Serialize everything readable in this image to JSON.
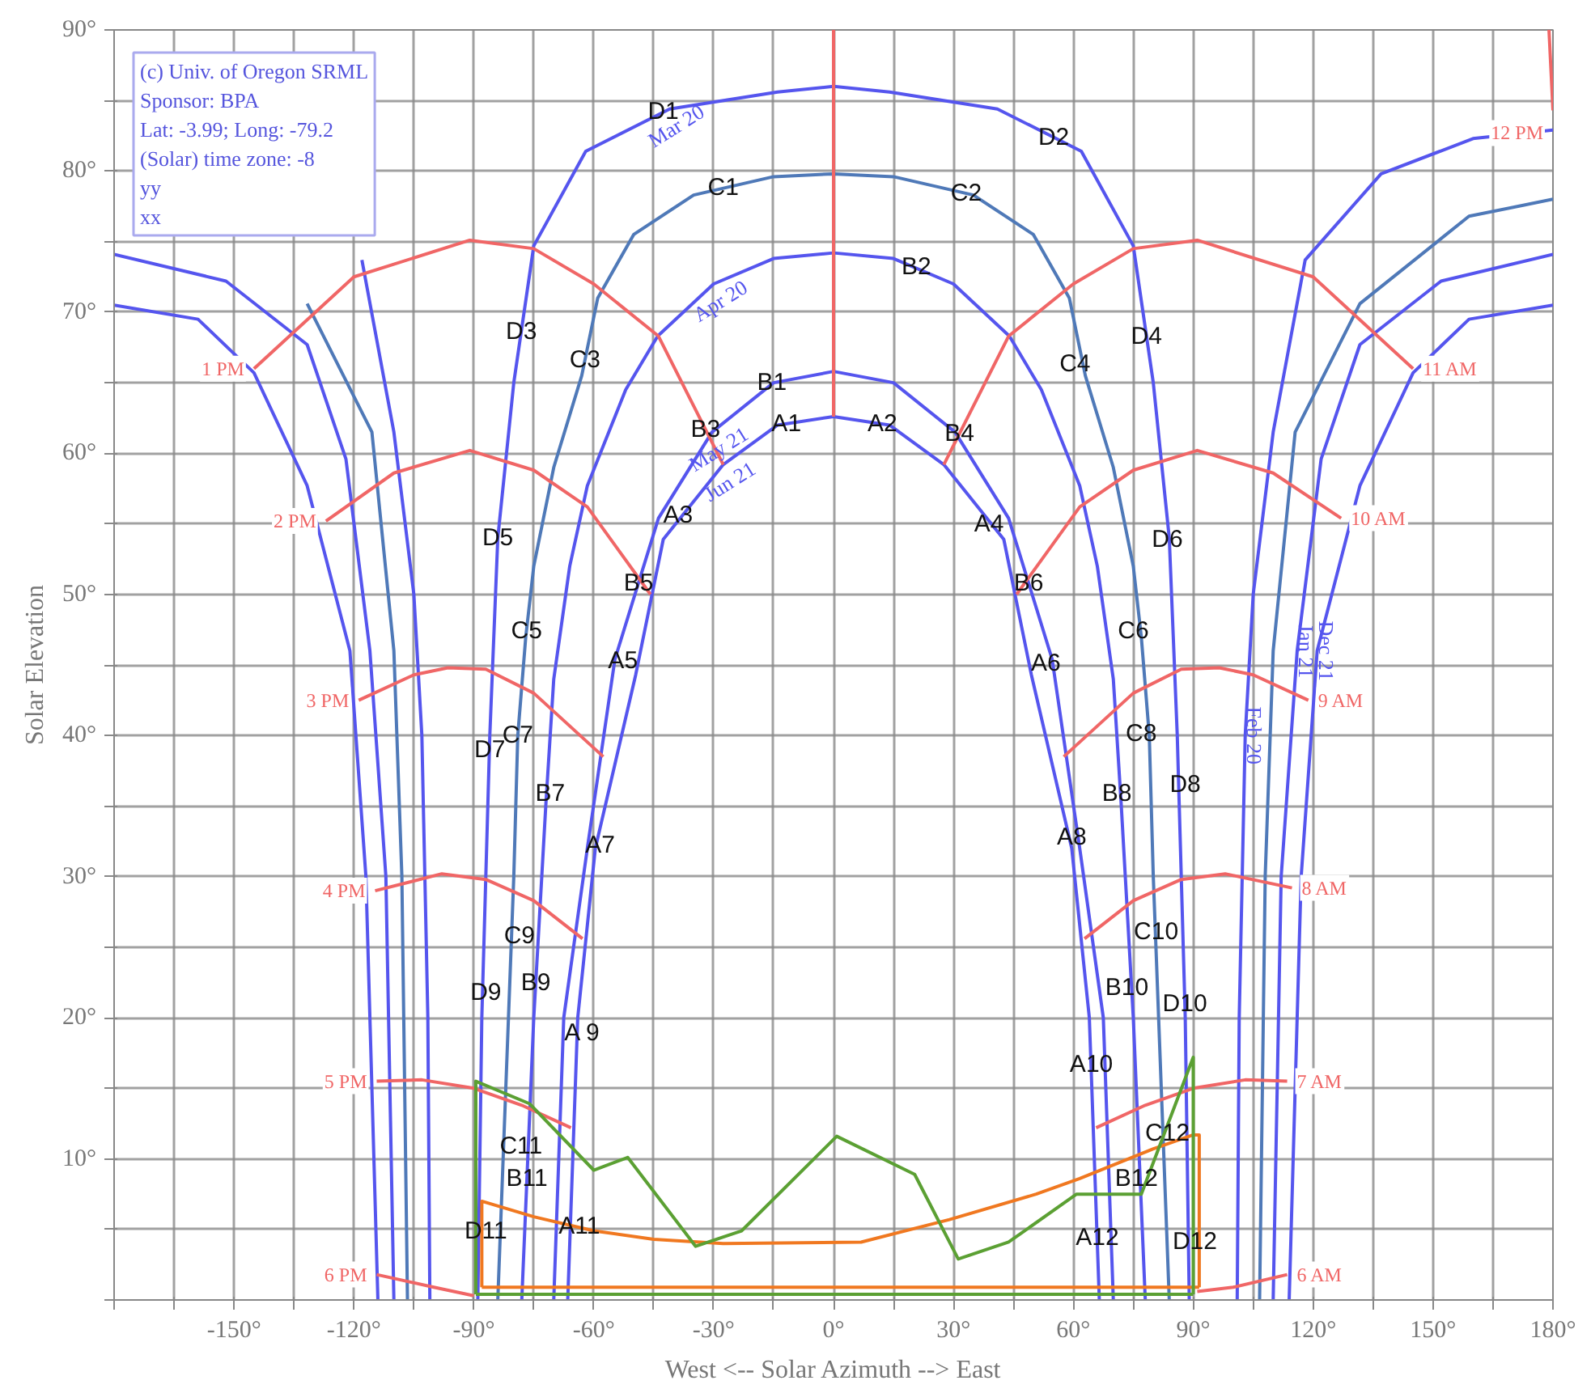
{
  "chart_data": {
    "type": "line",
    "xlabel": "West <-- Solar Azimuth --> East",
    "ylabel": "Solar Elevation",
    "xlim": [
      -180,
      180
    ],
    "ylim": [
      0,
      90
    ],
    "xticks": [
      {
        "value": -180,
        "label": null
      },
      {
        "value": -165,
        "label": null
      },
      {
        "value": -150,
        "label": "-150°"
      },
      {
        "value": -135,
        "label": null
      },
      {
        "value": -120,
        "label": "-120°"
      },
      {
        "value": -105,
        "label": null
      },
      {
        "value": -90,
        "label": "-90°"
      },
      {
        "value": -75,
        "label": null
      },
      {
        "value": -60,
        "label": "-60°"
      },
      {
        "value": -45,
        "label": null
      },
      {
        "value": -30,
        "label": "-30°"
      },
      {
        "value": -15,
        "label": null
      },
      {
        "value": 0,
        "label": "0°"
      },
      {
        "value": 15,
        "label": null
      },
      {
        "value": 30,
        "label": "30°"
      },
      {
        "value": 45,
        "label": null
      },
      {
        "value": 60,
        "label": "60°"
      },
      {
        "value": 75,
        "label": null
      },
      {
        "value": 90,
        "label": "90°"
      },
      {
        "value": 105,
        "label": null
      },
      {
        "value": 120,
        "label": "120°"
      },
      {
        "value": 135,
        "label": null
      },
      {
        "value": 150,
        "label": "150°"
      },
      {
        "value": 165,
        "label": null
      },
      {
        "value": 180,
        "label": "180°"
      }
    ],
    "yticks": [
      {
        "value": 0,
        "label": null
      },
      {
        "value": 5,
        "label": null
      },
      {
        "value": 10,
        "label": "10°"
      },
      {
        "value": 15,
        "label": null
      },
      {
        "value": 20,
        "label": "20°"
      },
      {
        "value": 25,
        "label": null
      },
      {
        "value": 30,
        "label": "30°"
      },
      {
        "value": 35,
        "label": null
      },
      {
        "value": 40,
        "label": "40°"
      },
      {
        "value": 45,
        "label": null
      },
      {
        "value": 50,
        "label": "50°"
      },
      {
        "value": 55,
        "label": null
      },
      {
        "value": 60,
        "label": "60°"
      },
      {
        "value": 65,
        "label": null
      },
      {
        "value": 70,
        "label": "70°"
      },
      {
        "value": 75,
        "label": null
      },
      {
        "value": 80,
        "label": "80°"
      },
      {
        "value": 85,
        "label": null
      },
      {
        "value": 90,
        "label": "90°"
      }
    ],
    "grid": true,
    "line_style": "solid",
    "marker": "none",
    "series": [
      {
        "name": "Mar 20",
        "color": "#5555ee",
        "x": [
          -89,
          -88,
          -86,
          -84,
          -80,
          -75,
          -62,
          -41,
          -14,
          0,
          14,
          41,
          62,
          75,
          80,
          84,
          86,
          88,
          89
        ],
        "values": [
          0,
          20,
          40,
          54,
          65,
          74.7,
          81.4,
          84.4,
          85.6,
          86,
          85.6,
          84.4,
          81.4,
          74.7,
          65,
          54,
          40,
          20,
          0
        ]
      },
      {
        "color": "#4f79b8",
        "x": [
          -84,
          -82,
          -80,
          -79,
          -77,
          -75,
          -70,
          -63,
          -59,
          -50,
          -35,
          -15,
          0,
          15,
          35,
          50,
          59,
          63,
          70,
          75,
          77,
          79,
          80,
          82,
          84
        ],
        "values": [
          0,
          15,
          30,
          40,
          47,
          52,
          59,
          65.5,
          71,
          75.5,
          78.3,
          79.6,
          79.8,
          79.6,
          78.3,
          75.5,
          71,
          65.5,
          59,
          52,
          47,
          40,
          30,
          15,
          0
        ]
      },
      {
        "name": "Apr 20",
        "color": "#5555ee",
        "x": [
          -78,
          -75,
          -72,
          -70,
          -66,
          -61.6,
          -52,
          -44,
          -30,
          -15,
          0,
          15,
          30,
          44,
          52,
          61.6,
          66,
          70,
          72,
          75,
          78
        ],
        "values": [
          0,
          20,
          35,
          44,
          52,
          57.7,
          64.5,
          68.3,
          72,
          73.8,
          74.2,
          73.8,
          72,
          68.3,
          64.5,
          57.7,
          52,
          44,
          35,
          20,
          0
        ]
      },
      {
        "name": "May 21",
        "color": "#5555ee",
        "x": [
          -70,
          -67.5,
          -61.6,
          -54.7,
          -43.8,
          -30.4,
          -15,
          0,
          15,
          30.4,
          43.8,
          54.7,
          61.6,
          67.5,
          70
        ],
        "values": [
          0,
          20,
          32,
          45.4,
          55.4,
          61.5,
          65,
          65.8,
          65,
          61.5,
          55.4,
          45.4,
          32,
          20,
          0
        ]
      },
      {
        "name": "Jun 21",
        "color": "#5555ee",
        "x": [
          -66.5,
          -64,
          -59.6,
          -49.5,
          -42.6,
          -27.6,
          -14,
          0,
          14,
          27.6,
          42.6,
          49.5,
          59.6,
          64,
          66.5
        ],
        "values": [
          0,
          20,
          32,
          44.3,
          53.9,
          59.2,
          62,
          62.6,
          62,
          59.2,
          53.9,
          44.3,
          32,
          20,
          0
        ]
      },
      {
        "name": "Feb 20",
        "color": "#5555ee",
        "x": [
          -101,
          -101.5,
          -103,
          -105,
          -110,
          -118,
          null,
          180,
          160,
          137,
          118,
          110,
          105,
          103,
          101.5,
          101
        ],
        "values": [
          0,
          20,
          40,
          50,
          61.5,
          73.7,
          null,
          82.9,
          82.3,
          79.8,
          73.7,
          61.5,
          50,
          40,
          20,
          0
        ]
      },
      {
        "color": "#4f79b8",
        "x": [
          -106.6,
          -108,
          -110,
          -115.5,
          -131.7,
          null,
          180,
          159,
          131.7,
          115.5,
          110,
          108,
          106.6
        ],
        "values": [
          0,
          30,
          46,
          61.5,
          70.6,
          null,
          78,
          76.8,
          70.6,
          61.5,
          46,
          30,
          0
        ]
      },
      {
        "name": "Jan 21",
        "color": "#5555ee",
        "x": [
          -110,
          -112,
          -116,
          -122,
          -131.7,
          -152,
          -180,
          null,
          180,
          152,
          131.7,
          122,
          116,
          112,
          110
        ],
        "values": [
          0,
          30,
          46,
          59.6,
          67.7,
          72.2,
          74.1,
          null,
          74.1,
          72.2,
          67.7,
          59.6,
          46,
          30,
          0
        ]
      },
      {
        "name": "Dec 21",
        "color": "#5555ee",
        "x": [
          -114,
          -117,
          -121,
          -131.7,
          -145,
          -159,
          -180,
          null,
          180,
          159,
          145,
          131.7,
          121,
          117,
          114
        ],
        "values": [
          0,
          30,
          46,
          57.7,
          65.7,
          69.5,
          70.5,
          null,
          70.5,
          69.5,
          65.7,
          57.7,
          46,
          30,
          0
        ]
      },
      {
        "name": "1 PM",
        "color": "#f06666",
        "x": [
          -145,
          -120,
          -91,
          -75,
          -60,
          -43.8,
          -27.6
        ],
        "values": [
          66,
          72.5,
          75.1,
          74.5,
          72,
          68.3,
          59.2
        ]
      },
      {
        "name": "2 PM",
        "color": "#f06666",
        "x": [
          -127,
          -110,
          -91,
          -75,
          -61.6,
          -45.8
        ],
        "values": [
          55.2,
          58.6,
          60.2,
          58.8,
          56.2,
          50
        ]
      },
      {
        "name": "3 PM",
        "color": "#f06666",
        "x": [
          -118.8,
          -105,
          -96.5,
          -87,
          -75,
          -57.6
        ],
        "values": [
          42.5,
          44.3,
          44.8,
          44.7,
          43,
          38.5
        ]
      },
      {
        "name": "4 PM",
        "color": "#f06666",
        "x": [
          -114.7,
          -98,
          -87,
          -75,
          -62.8
        ],
        "values": [
          29,
          30.2,
          29.8,
          28.3,
          25.6
        ]
      },
      {
        "name": "5 PM",
        "color": "#f06666",
        "x": [
          -114.3,
          -103,
          -90,
          -78,
          -65.7
        ],
        "values": [
          15.5,
          15.6,
          15,
          13.8,
          12.2
        ]
      },
      {
        "name": "6 PM",
        "color": "#f06666",
        "x": [
          -114.3,
          -100,
          -90
        ],
        "values": [
          1.8,
          0.9,
          0.3
        ]
      },
      {
        "name": "12 PM",
        "color": "#f06666",
        "x": [
          180,
          179,
          null,
          0,
          0
        ],
        "values": [
          84.3,
          90,
          null,
          90,
          62.6
        ]
      },
      {
        "name": "11 AM",
        "color": "#f06666",
        "x": [
          145,
          120,
          91,
          75,
          60,
          43.8,
          27.6
        ],
        "values": [
          66,
          72.5,
          75.1,
          74.5,
          72,
          68.3,
          59.2
        ]
      },
      {
        "name": "10 AM",
        "color": "#f06666",
        "x": [
          127,
          110,
          91,
          75,
          61.6,
          45.8
        ],
        "values": [
          55.4,
          58.6,
          60.2,
          58.8,
          56.2,
          50
        ]
      },
      {
        "name": "9 AM",
        "color": "#f06666",
        "x": [
          118.8,
          105,
          96.5,
          87,
          75,
          57.6
        ],
        "values": [
          42.5,
          44.3,
          44.8,
          44.7,
          43,
          38.5
        ]
      },
      {
        "name": "8 AM",
        "color": "#f06666",
        "x": [
          114.7,
          98,
          87,
          75,
          62.8
        ],
        "values": [
          29.2,
          30.2,
          29.8,
          28.3,
          25.6
        ]
      },
      {
        "name": "7 AM",
        "color": "#f06666",
        "x": [
          113.5,
          103,
          90,
          78,
          65.7
        ],
        "values": [
          15.5,
          15.6,
          15,
          13.8,
          12.2
        ]
      },
      {
        "name": "6 AM",
        "color": "#f06666",
        "x": [
          113.5,
          100,
          91
        ],
        "values": [
          1.8,
          0.9,
          0.6
        ]
      },
      {
        "color": "#f07820",
        "x": [
          -88,
          -88,
          -75,
          -60,
          -45,
          -27.6,
          6.9,
          29,
          50.7,
          61.6,
          79.9,
          90,
          91.5,
          91.5
        ],
        "values": [
          0.9,
          7,
          5.9,
          4.9,
          4.3,
          4,
          4.1,
          5.7,
          7.5,
          8.6,
          10.7,
          11.7,
          11.7,
          0.9
        ]
      },
      {
        "color": "#f07820",
        "x": [
          -88,
          91.5
        ],
        "values": [
          0.9,
          0.9
        ]
      },
      {
        "color": "#5ba033",
        "x": [
          -89.5,
          -89.5,
          -76,
          -60,
          -51.5,
          -34.5,
          -23,
          0.8,
          20.3,
          31.2,
          43.8,
          60.8,
          77,
          90,
          90
        ],
        "values": [
          0.4,
          15.5,
          13.9,
          9.2,
          10.1,
          3.8,
          4.9,
          11.6,
          8.9,
          2.9,
          4.1,
          7.5,
          7.5,
          17.2,
          0.4
        ]
      },
      {
        "color": "#5ba033",
        "x": [
          -89.5,
          90
        ],
        "values": [
          0.4,
          0.4
        ]
      }
    ],
    "annotations": [
      "(c) Univ. of Oregon SRML",
      "Sponsor: BPA",
      "Lat: -3.99; Long: -79.2",
      "(Solar) time zone: -8",
      "yy",
      "xx",
      {
        "text": "D1",
        "x": -42.6,
        "y": 84.2
      },
      {
        "text": "D2",
        "x": 55.1,
        "y": 82.4
      },
      {
        "text": "C1",
        "x": -27.6,
        "y": 78.8
      },
      {
        "text": "C2",
        "x": 33.2,
        "y": 78.4
      },
      {
        "text": "D3",
        "x": -78.1,
        "y": 68.6
      },
      {
        "text": "C3",
        "x": -62.2,
        "y": 66.6
      },
      {
        "text": "B1",
        "x": -15.4,
        "y": 65
      },
      {
        "text": "B2",
        "x": 20.7,
        "y": 73.2
      },
      {
        "text": "D4",
        "x": 78.3,
        "y": 68.3
      },
      {
        "text": "C4",
        "x": 60.4,
        "y": 66.3
      },
      {
        "text": "A1",
        "x": -11.8,
        "y": 62.1
      },
      {
        "text": "A2",
        "x": 12.2,
        "y": 62.1
      },
      {
        "text": "B3",
        "x": -32,
        "y": 61.7
      },
      {
        "text": "B4",
        "x": 31.5,
        "y": 61.4
      },
      {
        "text": "A3",
        "x": -38.9,
        "y": 55.6
      },
      {
        "text": "A4",
        "x": 38.9,
        "y": 55
      },
      {
        "text": "D5",
        "x": -84,
        "y": 54
      },
      {
        "text": "D6",
        "x": 83.5,
        "y": 53.9
      },
      {
        "text": "B5",
        "x": -48.8,
        "y": 50.8
      },
      {
        "text": "B6",
        "x": 48.8,
        "y": 50.8
      },
      {
        "text": "C5",
        "x": -76.8,
        "y": 47.4
      },
      {
        "text": "C6",
        "x": 75,
        "y": 47.4
      },
      {
        "text": "A5",
        "x": -52.7,
        "y": 45.3
      },
      {
        "text": "A6",
        "x": 53.1,
        "y": 45.1
      },
      {
        "text": "D7",
        "x": -86,
        "y": 39
      },
      {
        "text": "C7",
        "x": -79,
        "y": 40
      },
      {
        "text": "C8",
        "x": 77,
        "y": 40.1
      },
      {
        "text": "B7",
        "x": -70.9,
        "y": 35.9
      },
      {
        "text": "B8",
        "x": 70.9,
        "y": 35.9
      },
      {
        "text": "D8",
        "x": 88,
        "y": 36.5
      },
      {
        "text": "A7",
        "x": -58.4,
        "y": 32.2
      },
      {
        "text": "A8",
        "x": 59.6,
        "y": 32.8
      },
      {
        "text": "C9",
        "x": -78.6,
        "y": 25.8
      },
      {
        "text": "C10",
        "x": 80.7,
        "y": 26.1
      },
      {
        "text": "B9",
        "x": -74.5,
        "y": 22.5
      },
      {
        "text": "B10",
        "x": 73.4,
        "y": 22.1
      },
      {
        "text": "D9",
        "x": -87,
        "y": 21.8
      },
      {
        "text": "D10",
        "x": 87.9,
        "y": 21
      },
      {
        "text": "A 9",
        "x": -62.8,
        "y": 18.9
      },
      {
        "text": "A10",
        "x": 64.5,
        "y": 16.7
      },
      {
        "text": "C11",
        "x": -78.2,
        "y": 10.9
      },
      {
        "text": "C12",
        "x": 83.5,
        "y": 11.8
      },
      {
        "text": "B11",
        "x": -76.7,
        "y": 8.6
      },
      {
        "text": "B12",
        "x": 75.8,
        "y": 8.6
      },
      {
        "text": "A11",
        "x": -63.6,
        "y": 5.2
      },
      {
        "text": "A12",
        "x": 66,
        "y": 4.4
      },
      {
        "text": "D11",
        "x": -87,
        "y": 4.9
      },
      {
        "text": "D12",
        "x": 90.4,
        "y": 4.1
      }
    ]
  }
}
